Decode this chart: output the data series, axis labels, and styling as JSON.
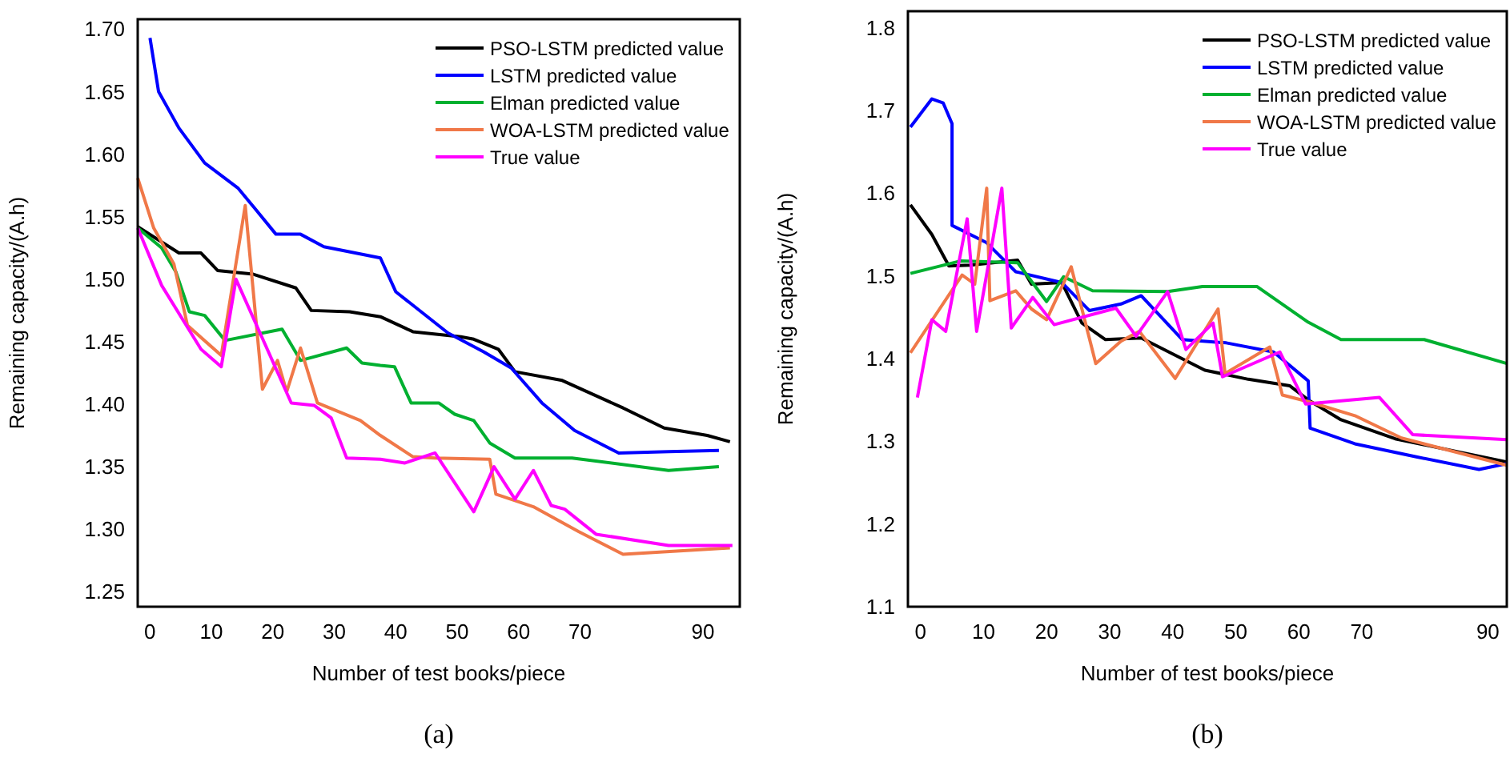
{
  "chart_data": [
    {
      "type": "line",
      "xlabel": "Number of test books/piece",
      "ylabel": "Remaining capacity/(A.h)",
      "annotations": [
        "(a)"
      ],
      "legend": "top right",
      "xlim": [
        -2,
        96
      ],
      "ylim": [
        1.238,
        1.708
      ],
      "xticks": [
        0,
        10,
        20,
        30,
        40,
        50,
        60,
        70,
        90
      ],
      "yticks": [
        {
          "value": 1.25,
          "label": "1.25"
        },
        {
          "value": 1.3,
          "label": "1.30"
        },
        {
          "value": 1.35,
          "label": "1.35"
        },
        {
          "value": 1.4,
          "label": "1.40"
        },
        {
          "value": 1.45,
          "label": "1.45"
        },
        {
          "value": 1.5,
          "label": "1.50"
        },
        {
          "value": 1.55,
          "label": "1.55"
        },
        {
          "value": 1.6,
          "label": "1.60"
        },
        {
          "value": 1.65,
          "label": "1.65"
        },
        {
          "value": 1.7,
          "label": "1.70"
        }
      ],
      "series": [
        {
          "name": "PSO-LSTM predicted value",
          "color": "#000000",
          "x": [
            -2,
            4.7,
            8.3,
            11,
            16.8,
            23.75,
            26.25,
            32.5,
            37.5,
            42.8,
            50.6,
            52.7,
            56.7,
            59.4,
            67.1,
            77,
            83.7,
            90.7,
            94.4
          ],
          "values": [
            1.542,
            1.521,
            1.521,
            1.507,
            1.504,
            1.493,
            1.475,
            1.474,
            1.47,
            1.458,
            1.454,
            1.452,
            1.444,
            1.426,
            1.419,
            1.397,
            1.381,
            1.375,
            1.37
          ]
        },
        {
          "name": "LSTM predicted value",
          "color": "#0000ff",
          "x": [
            0,
            1.4,
            4.7,
            8.9,
            14.3,
            17,
            20.5,
            24.5,
            28.3,
            37.5,
            40,
            48.5,
            54.3,
            58.8,
            63.8,
            69.1,
            76.3,
            84.4,
            92.6
          ],
          "values": [
            1.693,
            1.65,
            1.621,
            1.593,
            1.573,
            1.557,
            1.536,
            1.536,
            1.526,
            1.517,
            1.49,
            1.457,
            1.442,
            1.429,
            1.401,
            1.379,
            1.361,
            1.362,
            1.363
          ]
        },
        {
          "name": "Elman predicted value",
          "color": "#00b030",
          "x": [
            -2,
            1.9,
            4.2,
            6.4,
            8.9,
            12.2,
            21.5,
            24.5,
            32,
            34.5,
            37.5,
            39.8,
            42.5,
            47,
            49.6,
            52.7,
            55.3,
            59.4,
            68.7,
            84.4,
            92.6
          ],
          "values": [
            1.541,
            1.525,
            1.506,
            1.474,
            1.471,
            1.451,
            1.46,
            1.435,
            1.445,
            1.433,
            1.431,
            1.43,
            1.401,
            1.401,
            1.392,
            1.387,
            1.369,
            1.357,
            1.357,
            1.347,
            1.35
          ]
        },
        {
          "name": "WOA-LSTM predicted value",
          "color": "#f07848",
          "x": [
            -2,
            0.6,
            3.9,
            6.1,
            11.6,
            15.5,
            18.3,
            20.75,
            22.25,
            24.5,
            27.25,
            34.25,
            37.5,
            42.8,
            46.4,
            55.3,
            56.3,
            62.4,
            69.8,
            77,
            94.4
          ],
          "values": [
            1.581,
            1.541,
            1.512,
            1.463,
            1.439,
            1.559,
            1.412,
            1.435,
            1.41,
            1.445,
            1.401,
            1.387,
            1.375,
            1.358,
            1.357,
            1.356,
            1.328,
            1.318,
            1.298,
            1.28,
            1.285
          ]
        },
        {
          "name": "True value",
          "color": "#ff00ff",
          "x": [
            -2,
            1.9,
            8.3,
            11.6,
            14,
            23,
            26.75,
            29.5,
            32,
            37.5,
            41.5,
            46.4,
            52.7,
            56,
            59.4,
            62.4,
            65.3,
            67.5,
            72.6,
            84.4,
            94.8
          ],
          "values": [
            1.541,
            1.495,
            1.444,
            1.43,
            1.5,
            1.401,
            1.399,
            1.389,
            1.357,
            1.356,
            1.353,
            1.361,
            1.314,
            1.35,
            1.324,
            1.347,
            1.319,
            1.316,
            1.296,
            1.287,
            1.287
          ]
        }
      ]
    },
    {
      "type": "line",
      "xlabel": "Number of test books/piece",
      "ylabel": "Remaining capacity/(A.h)",
      "annotations": [
        "(b)"
      ],
      "legend": "top right",
      "xlim": [
        -2,
        93
      ],
      "ylim": [
        1.1,
        1.82
      ],
      "xticks": [
        0,
        10,
        20,
        30,
        40,
        50,
        60,
        70,
        90
      ],
      "yticks": [
        1.1,
        1.2,
        1.3,
        1.4,
        1.5,
        1.6,
        1.7,
        1.8
      ],
      "series": [
        {
          "name": "PSO-LSTM predicted value",
          "color": "#000000",
          "x": [
            -1.6,
            1.8,
            4.5,
            7.9,
            15.4,
            17.6,
            22.4,
            25.6,
            29.3,
            35,
            45.1,
            52,
            58.6,
            61.5,
            66.7,
            75.3,
            93
          ],
          "values": [
            1.586,
            1.55,
            1.512,
            1.513,
            1.519,
            1.49,
            1.492,
            1.443,
            1.423,
            1.425,
            1.386,
            1.375,
            1.367,
            1.35,
            1.326,
            1.303,
            1.275
          ]
        },
        {
          "name": "LSTM predicted value",
          "color": "#0000ff",
          "x": [
            -1.6,
            1.8,
            3.6,
            5,
            5,
            10.5,
            15.1,
            22.4,
            26.8,
            31.8,
            35,
            41.5,
            48.5,
            56,
            61.5,
            61.8,
            68.9,
            78.8,
            88.6,
            93
          ],
          "values": [
            1.68,
            1.714,
            1.709,
            1.684,
            1.561,
            1.54,
            1.505,
            1.492,
            1.458,
            1.466,
            1.476,
            1.423,
            1.419,
            1.408,
            1.373,
            1.316,
            1.297,
            1.281,
            1.266,
            1.273
          ]
        },
        {
          "name": "Elman predicted value",
          "color": "#00b030",
          "x": [
            -1.6,
            6.3,
            15.4,
            20,
            22.7,
            27.3,
            39.2,
            44.7,
            53.4,
            61.5,
            66.7,
            79.9,
            93
          ],
          "values": [
            1.503,
            1.518,
            1.516,
            1.469,
            1.499,
            1.482,
            1.481,
            1.487,
            1.487,
            1.444,
            1.423,
            1.423,
            1.394
          ]
        },
        {
          "name": "WOA-LSTM predicted value",
          "color": "#f07848",
          "x": [
            -1.6,
            6.6,
            8.6,
            10.5,
            11,
            15.1,
            17.6,
            20,
            23.9,
            27.8,
            31.8,
            34.7,
            40.4,
            47.2,
            48.3,
            55.4,
            57.4,
            61.5,
            68.9,
            76.3,
            93
          ],
          "values": [
            1.407,
            1.501,
            1.49,
            1.606,
            1.47,
            1.482,
            1.46,
            1.447,
            1.511,
            1.394,
            1.421,
            1.433,
            1.376,
            1.46,
            1.382,
            1.414,
            1.356,
            1.348,
            1.331,
            1.304,
            1.271
          ]
        },
        {
          "name": "True value",
          "color": "#ff00ff",
          "x": [
            -0.5,
            1.8,
            4,
            7.4,
            8.9,
            12.9,
            14.4,
            17.8,
            21.2,
            31,
            34.2,
            39.2,
            42.1,
            46.4,
            47.9,
            57,
            61.1,
            72.8,
            78.1,
            93
          ],
          "values": [
            1.353,
            1.447,
            1.433,
            1.569,
            1.433,
            1.606,
            1.437,
            1.474,
            1.441,
            1.461,
            1.427,
            1.481,
            1.411,
            1.443,
            1.378,
            1.408,
            1.345,
            1.353,
            1.308,
            1.302
          ]
        }
      ]
    }
  ]
}
